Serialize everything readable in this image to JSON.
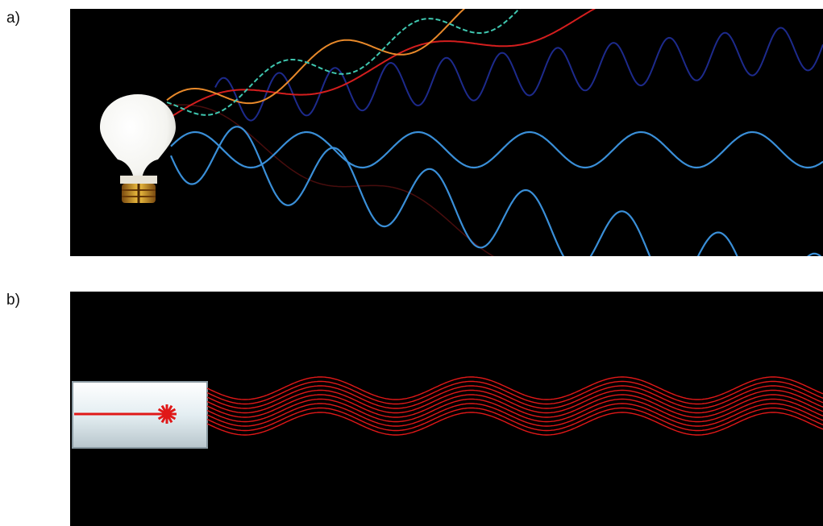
{
  "panels": {
    "a": {
      "label": "a)"
    },
    "b": {
      "label": "b)"
    }
  },
  "colors": {
    "background": "#000000",
    "page": "#ffffff",
    "wave_blue": "#3a8fd8",
    "wave_dark_blue": "#1d2a8c",
    "wave_red": "#d41e1e",
    "wave_orange": "#e8892a",
    "wave_teal": "#3fc7b0",
    "wave_dark_red": "#5a1010",
    "laser_red": "#e01818",
    "bulb_glass": "#ffffff",
    "bulb_base": "#d9a52a"
  },
  "icons": {
    "light_source": "light-bulb-icon",
    "laser_source": "laser-device-icon"
  }
}
